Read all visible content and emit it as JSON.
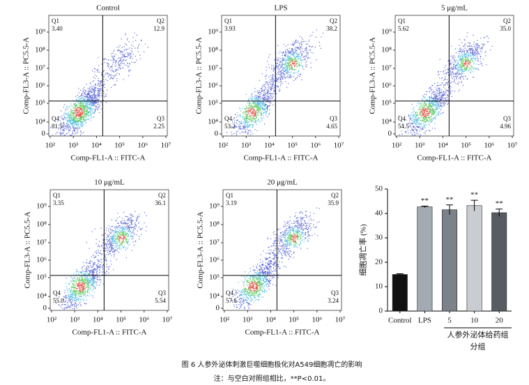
{
  "flow_axes": {
    "xlabel": "Comp-FL1-A :: FITC-A",
    "ylabel": "Comp-FL3-A :: PC5.5-A",
    "xticks": [
      "10²",
      "10³",
      "10⁴",
      "10⁵",
      "10⁶",
      "10⁷"
    ],
    "yticks": [
      "0",
      "10⁴",
      "10⁵",
      "10⁶",
      "10⁷",
      "10⁸",
      "10⁹"
    ]
  },
  "panels": [
    {
      "title": "Control",
      "quadrants": [
        {
          "name": "Q1",
          "value": "3.40"
        },
        {
          "name": "Q2",
          "value": "12.9"
        },
        {
          "name": "Q3",
          "value": "2.25"
        },
        {
          "name": "Q4",
          "value": "81.5"
        }
      ]
    },
    {
      "title": "LPS",
      "quadrants": [
        {
          "name": "Q1",
          "value": "3.93"
        },
        {
          "name": "Q2",
          "value": "38.2"
        },
        {
          "name": "Q3",
          "value": "4.65"
        },
        {
          "name": "Q4",
          "value": "53.2"
        }
      ]
    },
    {
      "title": "5 μg/mL",
      "quadrants": [
        {
          "name": "Q1",
          "value": "5.62"
        },
        {
          "name": "Q2",
          "value": "35.0"
        },
        {
          "name": "Q3",
          "value": "4.96"
        },
        {
          "name": "Q4",
          "value": "54.5"
        }
      ]
    },
    {
      "title": "10 μg/mL",
      "quadrants": [
        {
          "name": "Q1",
          "value": "3.35"
        },
        {
          "name": "Q2",
          "value": "36.1"
        },
        {
          "name": "Q3",
          "value": "5.54"
        },
        {
          "name": "Q4",
          "value": "55.0"
        }
      ]
    },
    {
      "title": "20 μg/mL",
      "quadrants": [
        {
          "name": "Q1",
          "value": "3.19"
        },
        {
          "name": "Q2",
          "value": "35.9"
        },
        {
          "name": "Q3",
          "value": "3.24"
        },
        {
          "name": "Q4",
          "value": "57.6"
        }
      ]
    }
  ],
  "chart_data": {
    "type": "bar",
    "ylabel": "细胞凋亡率 (%)",
    "xlabel": "分组",
    "group_label": "人参外泌体给药组",
    "categories": [
      "Control",
      "LPS",
      "5",
      "10",
      "20"
    ],
    "values": [
      15.0,
      42.7,
      41.5,
      43.2,
      40.3
    ],
    "errors": [
      0.3,
      0.3,
      2.0,
      2.2,
      1.5
    ],
    "colors": [
      "#111111",
      "#a3aab2",
      "#7b8289",
      "#c9cdd1",
      "#565c62"
    ],
    "significance": [
      null,
      "**",
      "**",
      "**",
      "**"
    ],
    "ylim": [
      0,
      50
    ],
    "yticks": [
      0,
      10,
      20,
      30,
      40,
      50
    ]
  },
  "caption": "图 6  人参外泌体刺激巨噬细胞极化对A549细胞凋亡的影响",
  "note": "注：与空白对照组相比，**P<0.01。"
}
